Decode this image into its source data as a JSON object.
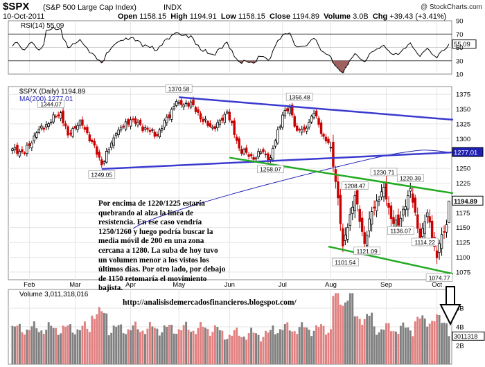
{
  "header": {
    "symbol": "$SPX",
    "name": "(S&P 500 Large Cap Index)",
    "exchange": "INDX",
    "credit": "@ StockCharts.com",
    "date": "10-Oct-2011",
    "open_label": "Open",
    "open": "1158.15",
    "high_label": "High",
    "high": "1194.91",
    "low_label": "Low",
    "low": "1158.15",
    "close_label": "Close",
    "close": "1194.89",
    "volume_label": "Volume",
    "volume": "3.0B",
    "chg_label": "Chg",
    "chg": "+39.43 (+3.41%)"
  },
  "colors": {
    "up": "#000000",
    "down": "#cc0000",
    "ma": "#1f1fb4",
    "trend_blue": "#3a3ad0",
    "trend_green": "#22aa22",
    "vol_up": "#808080",
    "vol_down": "#e08080",
    "rsi_fill": "#a06060"
  },
  "annotation": "Por encima de 1220/1225 estaría quebrando al alza la línea de resistencia. En ese caso vendría 1250/1260 y luego podría buscar la media móvil de 200 en una zona cercana a 1280. La suba de hoy tuvo un volumen menor a los vistos los últimos días. Por otro lado, por debajo de 1150 retomaría el movimiento bajista.",
  "url": "http://analisisdemercadosfinancieros.blogspot.com/",
  "chart_data": [
    {
      "type": "line",
      "panel": "rsi",
      "legend": "RSI(14) 55.09",
      "current_value": "55.09",
      "ylim": [
        10,
        90
      ],
      "yticks": [
        90,
        70,
        50,
        30,
        10
      ],
      "levels": [
        30,
        70
      ],
      "legend_placement": "top-left"
    },
    {
      "type": "candlestick",
      "panel": "price",
      "legend": [
        "$SPX (Daily) 1194.89",
        "MA(200) 1277.01"
      ],
      "ylim": [
        1062,
        1388
      ],
      "yticks": [
        1075,
        1100,
        1125,
        1150,
        1175,
        1200,
        1225,
        1250,
        1275,
        1300,
        1325,
        1350,
        1375
      ],
      "xticks": [
        "Feb",
        "Mar",
        "Apr",
        "May",
        "Jun",
        "Jul",
        "Aug",
        "Sep",
        "Oct"
      ],
      "last_close": "1194.89",
      "ma200_last": "1277.01",
      "annotations": [
        {
          "text": "1344.07",
          "value": 1344.07
        },
        {
          "text": "1249.05",
          "value": 1249.05
        },
        {
          "text": "1370.58",
          "value": 1370.58
        },
        {
          "text": "1258.07",
          "value": 1258.07
        },
        {
          "text": "1356.48",
          "value": 1356.48
        },
        {
          "text": "1208.47",
          "value": 1208.47
        },
        {
          "text": "1230.71",
          "value": 1230.71
        },
        {
          "text": "1220.39",
          "value": 1220.39
        },
        {
          "text": "1121.09",
          "value": 1121.09
        },
        {
          "text": "1101.54",
          "value": 1101.54
        },
        {
          "text": "1136.07",
          "value": 1136.07
        },
        {
          "text": "1114.22",
          "value": 1114.22
        },
        {
          "text": "1074.77",
          "value": 1074.77
        }
      ],
      "trendlines": [
        {
          "color": "blue",
          "from": [
            "2011-05-02",
            1370
          ],
          "to": [
            "2011-10-10",
            1332
          ]
        },
        {
          "color": "blue",
          "from": [
            "2011-03-16",
            1249
          ],
          "to": [
            "2011-10-10",
            1277
          ]
        },
        {
          "color": "green",
          "from": [
            "2011-06-01",
            1268
          ],
          "to": [
            "2011-10-10",
            1208
          ]
        },
        {
          "color": "green",
          "from": [
            "2011-07-29",
            1118
          ],
          "to": [
            "2011-10-10",
            1072
          ]
        }
      ]
    },
    {
      "type": "bar",
      "panel": "volume",
      "legend": "Volume 3,011,318,016",
      "current_value": "3011318016",
      "ylim": [
        0,
        8
      ],
      "yticks": [
        2,
        4,
        6
      ],
      "ytick_labels": [
        "2B",
        "4B",
        "6B"
      ],
      "unit": "billions"
    }
  ]
}
